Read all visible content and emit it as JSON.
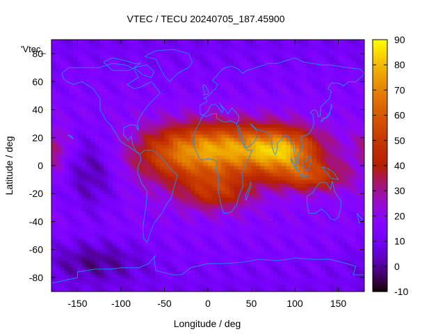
{
  "chart_data": {
    "type": "heatmap",
    "title": "VTEC / TECU 20240705_187.45900",
    "xlabel": "Longitude / deg",
    "ylabel": "Latitude / deg",
    "overlay_label": "'Vtec_",
    "xlim": [
      -180,
      180
    ],
    "ylim": [
      -90,
      90
    ],
    "x_ticks": [
      -150,
      -100,
      -50,
      0,
      50,
      100,
      150
    ],
    "y_ticks": [
      -80,
      -60,
      -40,
      -20,
      0,
      20,
      40,
      60,
      80
    ],
    "colorbar": {
      "range": [
        -10,
        90
      ],
      "ticks": [
        -10,
        0,
        10,
        20,
        30,
        40,
        50,
        60,
        70,
        80,
        90
      ],
      "palette": "gnuplot-rgbformulae-7-5-15"
    },
    "grid_resolution_deg": {
      "lon": 5,
      "lat": 2.5
    },
    "features": [
      {
        "lon": 10,
        "lat": 15,
        "value": 82,
        "desc": "equatorial anomaly peak over Africa (north crest)"
      },
      {
        "lon": 80,
        "lat": 12,
        "value": 76,
        "desc": "crest over India / Bay of Bengal"
      },
      {
        "lon": 110,
        "lat": -8,
        "value": 50,
        "desc": "Indonesian sector"
      },
      {
        "lon": -135,
        "lat": -5,
        "value": 2,
        "desc": "minimum over central Pacific"
      },
      {
        "lon": -130,
        "lat": -68,
        "value": -2,
        "desc": "minimum near Antarctica"
      }
    ],
    "coastline_color": "#1e90ff"
  }
}
